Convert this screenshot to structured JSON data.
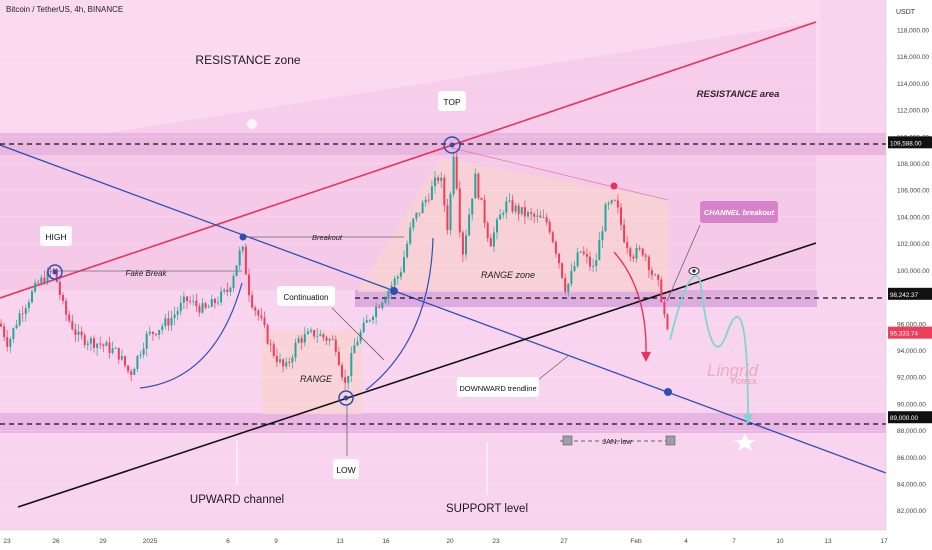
{
  "header": {
    "symbol_title": "Bitcoin / TetherUS, 4h, BINANCE"
  },
  "colors": {
    "background": "#f9d4ef",
    "resistance": "#e8b6de",
    "support": "#f1c4ea",
    "candle_up": "#26a69a",
    "candle_down": "#ef3e5c",
    "upper_channel": "#e8325a",
    "downtrend": "#2f4fb4",
    "upward_channel": "#111111",
    "projection": "#7fd4d4"
  },
  "chart_data": {
    "type": "candlestick",
    "title": "Bitcoin / TetherUS, 4h, BINANCE",
    "currency": "USDT",
    "x_ticks": [
      "23",
      "26",
      "29",
      "2025",
      "6",
      "9",
      "13",
      "16",
      "20",
      "23",
      "27",
      "Feb",
      "4",
      "7",
      "10",
      "13",
      "17"
    ],
    "y_ticks": [
      "82,000.00",
      "84,000.00",
      "86,000.00",
      "88,000.00",
      "90,000.00",
      "92,000.00",
      "94,000.00",
      "96,000.00",
      "98,000.00",
      "100,000.00",
      "102,000.00",
      "104,000.00",
      "106,000.00",
      "108,000.00",
      "110,000.00",
      "112,000.00",
      "114,000.00",
      "116,000.00",
      "118,000.00"
    ],
    "ylim": [
      81000,
      119000
    ],
    "price_tags": [
      "109,588.00",
      "98,242.37",
      "95,333.74",
      "89,000.00"
    ],
    "key_levels": [
      109588,
      98242.37,
      89000
    ],
    "path_anchors": [
      [
        0,
        96000
      ],
      [
        8,
        94500
      ],
      [
        20,
        96800
      ],
      [
        38,
        99000
      ],
      [
        54,
        100000
      ],
      [
        64,
        97000
      ],
      [
        78,
        95000
      ],
      [
        100,
        94500
      ],
      [
        118,
        93800
      ],
      [
        130,
        92200
      ],
      [
        146,
        95000
      ],
      [
        170,
        96300
      ],
      [
        186,
        97800
      ],
      [
        205,
        97000
      ],
      [
        228,
        98500
      ],
      [
        242,
        101800
      ],
      [
        250,
        98000
      ],
      [
        262,
        96000
      ],
      [
        272,
        94000
      ],
      [
        285,
        92500
      ],
      [
        298,
        94800
      ],
      [
        315,
        95300
      ],
      [
        335,
        94600
      ],
      [
        345,
        91400
      ],
      [
        355,
        94500
      ],
      [
        372,
        96800
      ],
      [
        388,
        98500
      ],
      [
        400,
        99800
      ],
      [
        412,
        103500
      ],
      [
        425,
        105200
      ],
      [
        440,
        107200
      ],
      [
        448,
        103000
      ],
      [
        454,
        109300
      ],
      [
        462,
        101000
      ],
      [
        475,
        107000
      ],
      [
        490,
        102000
      ],
      [
        505,
        105000
      ],
      [
        525,
        104200
      ],
      [
        548,
        103600
      ],
      [
        558,
        101000
      ],
      [
        566,
        98500
      ],
      [
        580,
        101500
      ],
      [
        594,
        100000
      ],
      [
        606,
        104700
      ],
      [
        616,
        105000
      ],
      [
        624,
        102500
      ],
      [
        632,
        101200
      ],
      [
        644,
        101500
      ],
      [
        652,
        99800
      ],
      [
        660,
        98600
      ],
      [
        668,
        95000
      ],
      [
        670,
        93200
      ]
    ],
    "annotations": [
      "RESISTANCE zone",
      "RESISTANCE area",
      "TOP",
      "HIGH",
      "Fake Break",
      "Breakout",
      "RANGE zone",
      "CHANNEL breakout",
      "Continuation",
      "RANGE",
      "DOWNWARD trendline",
      "JAN. low",
      "LOW",
      "UPWARD channel",
      "SUPPORT level"
    ]
  },
  "labels": {
    "resistance_zone": "RESISTANCE zone",
    "resistance_area": "RESISTANCE area",
    "top": "TOP",
    "high": "HIGH",
    "fake_break": "Fake Break",
    "breakout": "Breakout",
    "range_zone": "RANGE zone",
    "channel_breakout": "CHANNEL breakout",
    "continuation": "Continuation",
    "range": "RANGE",
    "downward_trendline": "DOWNWARD trendline",
    "jan_low": "JAN. low",
    "low": "LOW",
    "upward_channel": "UPWARD channel",
    "support_level": "SUPPORT level",
    "currency": "USDT",
    "brand": "Lingrid",
    "brand_sub": "FOREX"
  }
}
